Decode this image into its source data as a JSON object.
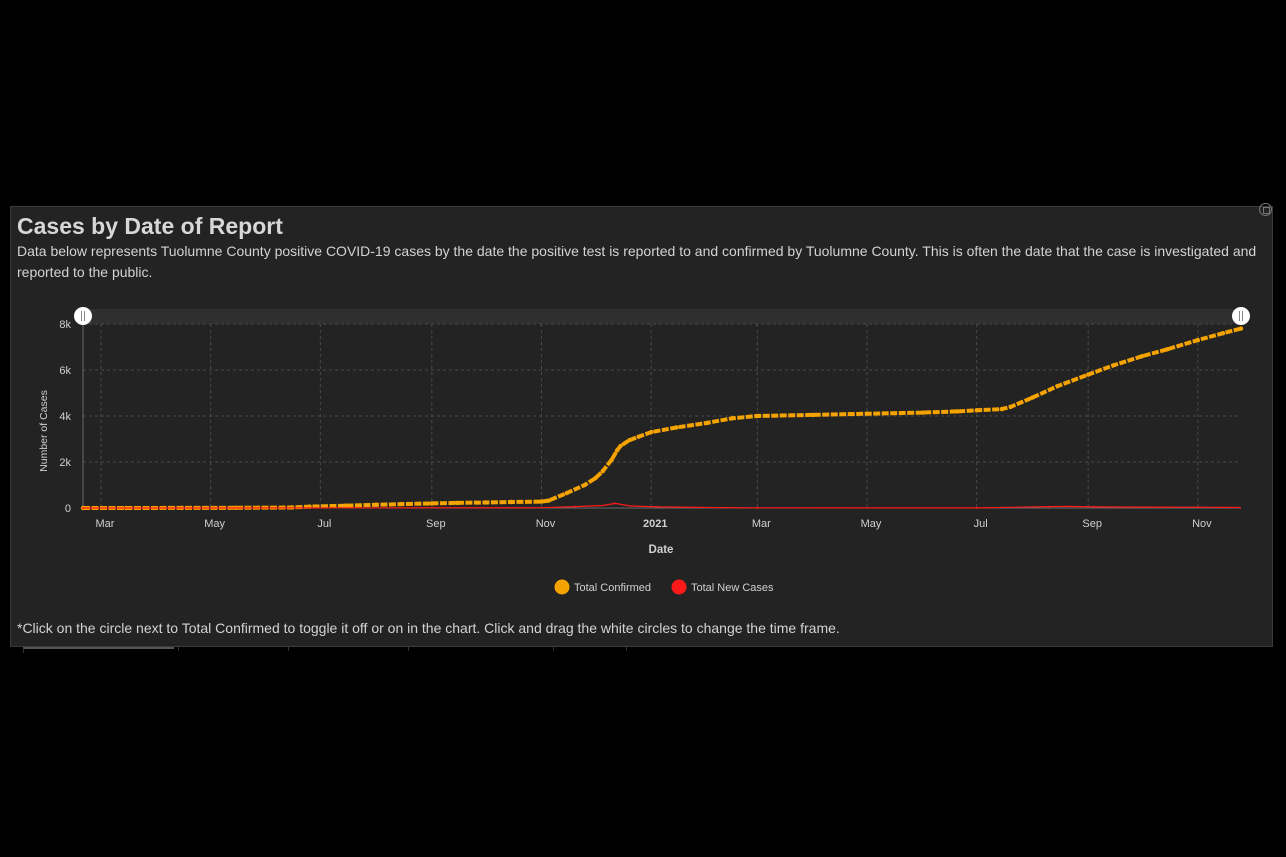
{
  "panel": {
    "title": "Cases by Date of Report",
    "description": "Data below represents Tuolumne County positive COVID-19 cases by the date the positive test is reported to and confirmed by Tuolumne County. This is often the date that the case is investigated and reported to the public.",
    "footnote": "*Click on the circle next to Total Confirmed to toggle it off or on in the chart. Click and drag the white circles to change the time frame."
  },
  "icons": {
    "expand": "expand-icon",
    "slider_handle": "slider-handle-icon"
  },
  "colors": {
    "total_confirmed": "#f5a300",
    "total_new_cases": "#ff1a1a",
    "background": "#232323"
  },
  "chart_data": {
    "type": "line",
    "title": "",
    "xlabel": "Date",
    "ylabel": "Number of Cases",
    "ylim": [
      0,
      8000
    ],
    "yticks": [
      0,
      2000,
      4000,
      6000,
      8000
    ],
    "ytick_labels": [
      "0",
      "2k",
      "4k",
      "6k",
      "8k"
    ],
    "xlim": [
      "2020-02-20",
      "2021-11-25"
    ],
    "xticks": [
      "2020-03-01",
      "2020-05-01",
      "2020-07-01",
      "2020-09-01",
      "2020-11-01",
      "2021-01-01",
      "2021-03-01",
      "2021-05-01",
      "2021-07-01",
      "2021-09-01",
      "2021-11-01"
    ],
    "xtick_labels": [
      "Mar",
      "May",
      "Jul",
      "Sep",
      "Nov",
      "2021",
      "Mar",
      "May",
      "Jul",
      "Sep",
      "Nov"
    ],
    "grid": true,
    "legend_position": "bottom-center",
    "series": [
      {
        "name": "Total Confirmed",
        "x": [
          "2020-02-20",
          "2020-03-15",
          "2020-04-15",
          "2020-05-15",
          "2020-06-15",
          "2020-06-25",
          "2020-07-15",
          "2020-08-01",
          "2020-08-15",
          "2020-09-01",
          "2020-09-15",
          "2020-10-01",
          "2020-10-15",
          "2020-11-01",
          "2020-11-05",
          "2020-11-15",
          "2020-11-25",
          "2020-12-01",
          "2020-12-05",
          "2020-12-10",
          "2020-12-13",
          "2020-12-15",
          "2020-12-20",
          "2020-12-25",
          "2021-01-01",
          "2021-01-15",
          "2021-02-01",
          "2021-02-15",
          "2021-03-01",
          "2021-04-01",
          "2021-05-01",
          "2021-06-01",
          "2021-06-20",
          "2021-07-01",
          "2021-07-15",
          "2021-07-20",
          "2021-08-01",
          "2021-08-15",
          "2021-09-01",
          "2021-09-15",
          "2021-10-01",
          "2021-10-15",
          "2021-11-01",
          "2021-11-15",
          "2021-11-25"
        ],
        "y": [
          0,
          0,
          5,
          10,
          20,
          60,
          100,
          140,
          170,
          200,
          220,
          240,
          260,
          280,
          320,
          650,
          1000,
          1300,
          1600,
          2100,
          2500,
          2700,
          2950,
          3100,
          3300,
          3500,
          3700,
          3900,
          4000,
          4050,
          4100,
          4150,
          4200,
          4250,
          4300,
          4400,
          4800,
          5300,
          5800,
          6200,
          6600,
          6900,
          7300,
          7600,
          7800
        ]
      },
      {
        "name": "Total New Cases",
        "x": [
          "2020-02-20",
          "2020-11-01",
          "2020-11-20",
          "2020-12-05",
          "2020-12-12",
          "2020-12-20",
          "2021-01-05",
          "2021-02-01",
          "2021-03-01",
          "2021-05-01",
          "2021-07-01",
          "2021-07-20",
          "2021-08-10",
          "2021-08-20",
          "2021-09-05",
          "2021-10-01",
          "2021-11-01",
          "2021-11-25"
        ],
        "y": [
          0,
          15,
          60,
          110,
          200,
          90,
          50,
          20,
          10,
          5,
          5,
          30,
          60,
          70,
          50,
          40,
          35,
          20
        ]
      }
    ]
  }
}
